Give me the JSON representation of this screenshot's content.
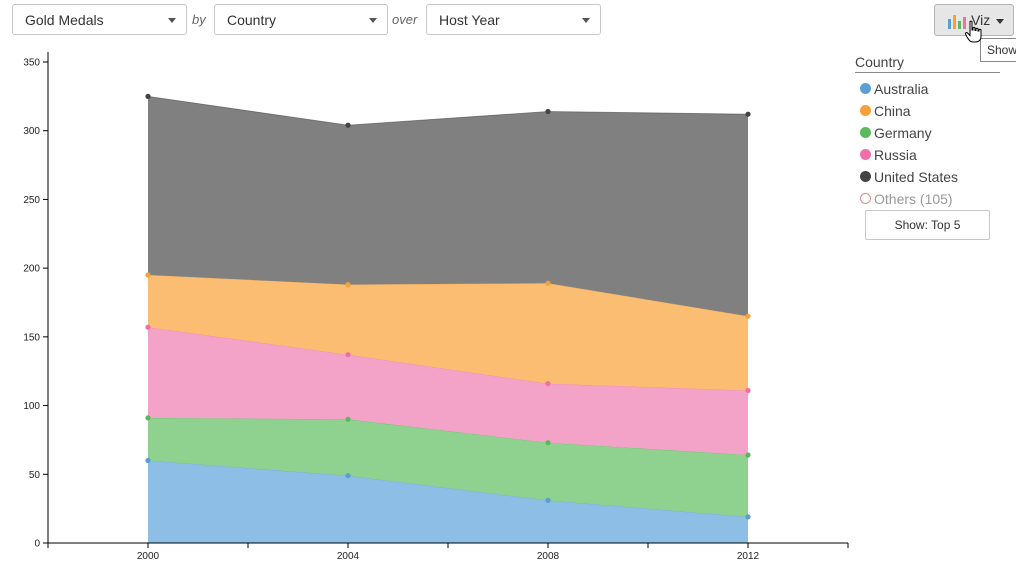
{
  "toolbar": {
    "measure": "Gold Medals",
    "by_label": "by",
    "group": "Country",
    "over_label": "over",
    "time": "Host Year"
  },
  "viz_button": {
    "label": "Viz",
    "icon": "bar-chart-icon"
  },
  "tooltip": {
    "text": "Show"
  },
  "legend": {
    "title": "Country",
    "items": [
      {
        "label": "Australia",
        "color": "#5a9fd4"
      },
      {
        "label": "China",
        "color": "#f5a03a"
      },
      {
        "label": "Germany",
        "color": "#5cb85c"
      },
      {
        "label": "Russia",
        "color": "#ef6fa8"
      },
      {
        "label": "United States",
        "color": "#444444"
      },
      {
        "label": "Others (105)",
        "color": "#e08a8a"
      }
    ],
    "show_button": "Show: Top 5"
  },
  "chart_data": {
    "type": "area",
    "stacked": true,
    "x": [
      2000,
      2004,
      2008,
      2012
    ],
    "x_ticks": [
      "2000",
      "2004",
      "2008",
      "2012"
    ],
    "xlim": [
      1998,
      2014
    ],
    "ylim": [
      0,
      350
    ],
    "y_ticks": [
      0,
      50,
      100,
      150,
      200,
      250,
      300,
      350
    ],
    "series": [
      {
        "name": "Australia",
        "values": [
          60,
          49,
          31,
          19
        ],
        "fill": "#8dbfe6",
        "stroke": "#5a9fd4"
      },
      {
        "name": "Germany",
        "values": [
          31,
          41,
          42,
          45
        ],
        "fill": "#8fd18f",
        "stroke": "#5cb85c"
      },
      {
        "name": "Russia",
        "values": [
          66,
          47,
          43,
          47
        ],
        "fill": "#f4a3c8",
        "stroke": "#ef6fa8"
      },
      {
        "name": "China",
        "values": [
          38,
          51,
          73,
          54
        ],
        "fill": "#fbbd72",
        "stroke": "#f5a03a"
      },
      {
        "name": "United States",
        "values": [
          130,
          116,
          125,
          147
        ],
        "fill": "#808080",
        "stroke": "#444444"
      }
    ]
  }
}
